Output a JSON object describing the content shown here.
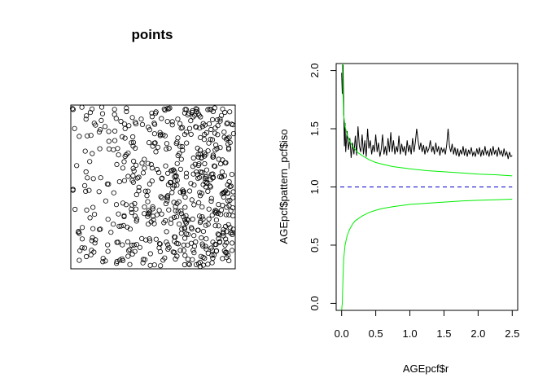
{
  "chart_data": [
    {
      "type": "scatter",
      "title": "points",
      "xlabel": "",
      "ylabel": "",
      "axes": false,
      "xlim": [
        0,
        1
      ],
      "ylim": [
        0,
        1
      ],
      "marker": "open-circle",
      "color": "#000000",
      "point_count": 600,
      "distribution": "density increasing toward the right edge"
    },
    {
      "type": "line",
      "title": "",
      "xlabel": "AGEpcf$r",
      "ylabel": "AGEpcf$pattern_pcf$iso",
      "xlim": [
        -0.08,
        2.58
      ],
      "ylim": [
        -0.06,
        2.06
      ],
      "x_ticks": [
        "0.0",
        "0.5",
        "1.0",
        "1.5",
        "2.0",
        "2.5"
      ],
      "y_ticks": [
        "0.0",
        "0.5",
        "1.0",
        "1.5",
        "2.0"
      ],
      "series": [
        {
          "color": "#000000",
          "style": "solid",
          "points": [
            [
              0.0,
              1.98
            ],
            [
              0.01,
              1.8
            ],
            [
              0.02,
              2.05
            ],
            [
              0.03,
              1.7
            ],
            [
              0.04,
              1.35
            ],
            [
              0.05,
              1.55
            ],
            [
              0.06,
              1.3
            ],
            [
              0.08,
              1.48
            ],
            [
              0.1,
              1.32
            ],
            [
              0.12,
              1.42
            ],
            [
              0.14,
              1.25
            ],
            [
              0.16,
              1.38
            ],
            [
              0.18,
              1.28
            ],
            [
              0.2,
              1.44
            ],
            [
              0.22,
              1.27
            ],
            [
              0.24,
              1.52
            ],
            [
              0.26,
              1.35
            ],
            [
              0.28,
              1.3
            ],
            [
              0.3,
              1.45
            ],
            [
              0.32,
              1.28
            ],
            [
              0.34,
              1.4
            ],
            [
              0.36,
              1.26
            ],
            [
              0.38,
              1.5
            ],
            [
              0.4,
              1.33
            ],
            [
              0.42,
              1.4
            ],
            [
              0.44,
              1.28
            ],
            [
              0.46,
              1.36
            ],
            [
              0.48,
              1.3
            ],
            [
              0.5,
              1.45
            ],
            [
              0.52,
              1.3
            ],
            [
              0.54,
              1.38
            ],
            [
              0.56,
              1.26
            ],
            [
              0.58,
              1.32
            ],
            [
              0.6,
              1.45
            ],
            [
              0.62,
              1.28
            ],
            [
              0.64,
              1.35
            ],
            [
              0.66,
              1.27
            ],
            [
              0.68,
              1.42
            ],
            [
              0.7,
              1.3
            ],
            [
              0.72,
              1.47
            ],
            [
              0.74,
              1.3
            ],
            [
              0.76,
              1.4
            ],
            [
              0.78,
              1.28
            ],
            [
              0.8,
              1.35
            ],
            [
              0.82,
              1.3
            ],
            [
              0.84,
              1.44
            ],
            [
              0.86,
              1.28
            ],
            [
              0.88,
              1.37
            ],
            [
              0.9,
              1.3
            ],
            [
              0.92,
              1.35
            ],
            [
              0.94,
              1.27
            ],
            [
              0.96,
              1.4
            ],
            [
              0.98,
              1.3
            ],
            [
              1.0,
              1.36
            ],
            [
              1.02,
              1.28
            ],
            [
              1.04,
              1.42
            ],
            [
              1.06,
              1.3
            ],
            [
              1.08,
              1.38
            ],
            [
              1.1,
              1.5
            ],
            [
              1.12,
              1.4
            ],
            [
              1.14,
              1.32
            ],
            [
              1.16,
              1.38
            ],
            [
              1.18,
              1.3
            ],
            [
              1.2,
              1.36
            ],
            [
              1.22,
              1.28
            ],
            [
              1.24,
              1.35
            ],
            [
              1.26,
              1.3
            ],
            [
              1.28,
              1.33
            ],
            [
              1.3,
              1.4
            ],
            [
              1.32,
              1.3
            ],
            [
              1.34,
              1.35
            ],
            [
              1.36,
              1.28
            ],
            [
              1.38,
              1.38
            ],
            [
              1.4,
              1.3
            ],
            [
              1.42,
              1.35
            ],
            [
              1.44,
              1.27
            ],
            [
              1.46,
              1.34
            ],
            [
              1.48,
              1.3
            ],
            [
              1.5,
              1.33
            ],
            [
              1.52,
              1.28
            ],
            [
              1.54,
              1.36
            ],
            [
              1.56,
              1.5
            ],
            [
              1.58,
              1.35
            ],
            [
              1.6,
              1.3
            ],
            [
              1.62,
              1.37
            ],
            [
              1.64,
              1.28
            ],
            [
              1.66,
              1.34
            ],
            [
              1.68,
              1.27
            ],
            [
              1.7,
              1.33
            ],
            [
              1.72,
              1.26
            ],
            [
              1.74,
              1.32
            ],
            [
              1.76,
              1.28
            ],
            [
              1.78,
              1.35
            ],
            [
              1.8,
              1.27
            ],
            [
              1.82,
              1.33
            ],
            [
              1.84,
              1.26
            ],
            [
              1.86,
              1.32
            ],
            [
              1.88,
              1.28
            ],
            [
              1.9,
              1.34
            ],
            [
              1.92,
              1.27
            ],
            [
              1.94,
              1.3
            ],
            [
              1.96,
              1.26
            ],
            [
              1.98,
              1.33
            ],
            [
              2.0,
              1.28
            ],
            [
              2.02,
              1.34
            ],
            [
              2.04,
              1.26
            ],
            [
              2.06,
              1.32
            ],
            [
              2.08,
              1.27
            ],
            [
              2.1,
              1.35
            ],
            [
              2.12,
              1.28
            ],
            [
              2.14,
              1.31
            ],
            [
              2.16,
              1.26
            ],
            [
              2.18,
              1.33
            ],
            [
              2.2,
              1.27
            ],
            [
              2.22,
              1.35
            ],
            [
              2.24,
              1.28
            ],
            [
              2.26,
              1.32
            ],
            [
              2.28,
              1.26
            ],
            [
              2.3,
              1.34
            ],
            [
              2.32,
              1.28
            ],
            [
              2.34,
              1.31
            ],
            [
              2.36,
              1.26
            ],
            [
              2.38,
              1.33
            ],
            [
              2.4,
              1.27
            ],
            [
              2.42,
              1.3
            ],
            [
              2.44,
              1.24
            ],
            [
              2.46,
              1.3
            ],
            [
              2.48,
              1.26
            ],
            [
              2.5,
              1.27
            ]
          ]
        },
        {
          "color": "#00ee00",
          "style": "solid",
          "points": [
            [
              0.01,
              2.06
            ],
            [
              0.02,
              1.78
            ],
            [
              0.03,
              1.62
            ],
            [
              0.05,
              1.52
            ],
            [
              0.08,
              1.45
            ],
            [
              0.12,
              1.39
            ],
            [
              0.16,
              1.35
            ],
            [
              0.2,
              1.32
            ],
            [
              0.25,
              1.29
            ],
            [
              0.3,
              1.27
            ],
            [
              0.4,
              1.235
            ],
            [
              0.5,
              1.21
            ],
            [
              0.6,
              1.195
            ],
            [
              0.75,
              1.175
            ],
            [
              1.0,
              1.155
            ],
            [
              1.25,
              1.14
            ],
            [
              1.5,
              1.13
            ],
            [
              1.75,
              1.12
            ],
            [
              2.0,
              1.11
            ],
            [
              2.25,
              1.105
            ],
            [
              2.5,
              1.095
            ]
          ]
        },
        {
          "color": "#00ee00",
          "style": "solid",
          "points": [
            [
              0.0,
              -0.06
            ],
            [
              0.01,
              0.0
            ],
            [
              0.02,
              0.22
            ],
            [
              0.03,
              0.38
            ],
            [
              0.05,
              0.5
            ],
            [
              0.08,
              0.58
            ],
            [
              0.12,
              0.64
            ],
            [
              0.16,
              0.68
            ],
            [
              0.2,
              0.71
            ],
            [
              0.25,
              0.73
            ],
            [
              0.3,
              0.75
            ],
            [
              0.4,
              0.78
            ],
            [
              0.5,
              0.8
            ],
            [
              0.6,
              0.815
            ],
            [
              0.75,
              0.83
            ],
            [
              1.0,
              0.85
            ],
            [
              1.25,
              0.86
            ],
            [
              1.5,
              0.87
            ],
            [
              1.75,
              0.88
            ],
            [
              2.0,
              0.885
            ],
            [
              2.25,
              0.89
            ],
            [
              2.5,
              0.895
            ]
          ]
        },
        {
          "color": "#0000cc",
          "style": "dashed",
          "points": [
            [
              -0.02,
              1.0
            ],
            [
              2.5,
              1.0
            ]
          ]
        }
      ]
    }
  ]
}
